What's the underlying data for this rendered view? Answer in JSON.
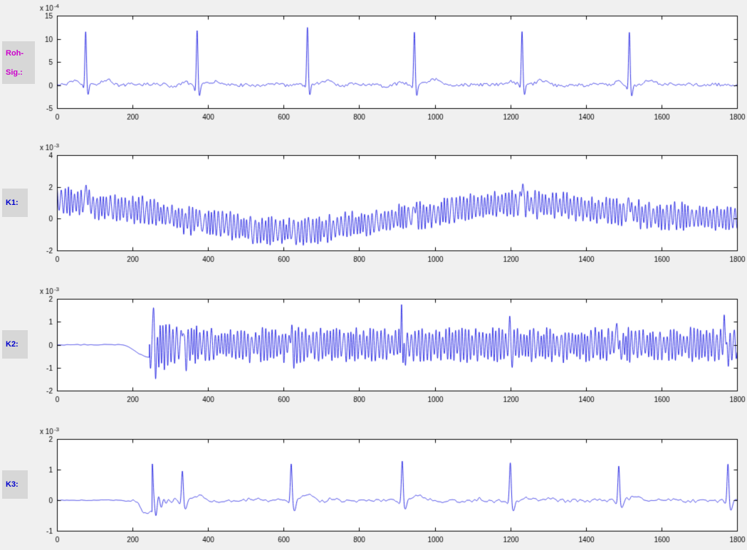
{
  "colors": {
    "figure_bg": "#f0f0f0",
    "label_bg": "#d7d7d7",
    "roh_label": "#cc00cc",
    "k_label": "#0000cc",
    "line": "#0000dd",
    "axis": "#000000"
  },
  "labels": {
    "roh": [
      "Roh-",
      "Sig.:"
    ],
    "k1": "K1:",
    "k2": "K2:",
    "k3": "K3:"
  },
  "chart_data": [
    {
      "type": "line",
      "name": "roh_sig",
      "label": "Roh-Sig.:",
      "x_range": [
        0,
        1800
      ],
      "xticks": [
        0,
        200,
        400,
        600,
        800,
        1000,
        1200,
        1400,
        1600,
        1800
      ],
      "ylim": [
        -5,
        15
      ],
      "yticks": [
        -5,
        0,
        5,
        10,
        15
      ],
      "y_exponent_base": "x 10",
      "y_exponent_power": "-4",
      "line_color": "#0000dd",
      "signal": {
        "kind": "ecg",
        "beats": [
          76,
          371,
          663,
          946,
          1231,
          1515
        ],
        "r_amps": [
          11.4,
          12.1,
          12.5,
          11.6,
          11.2,
          11.7
        ],
        "p_amp": 0.55,
        "q_amp": -0.9,
        "s_amp": -2.4,
        "t_amp": 1.0,
        "noise": 0.32,
        "wander": 0.28
      }
    },
    {
      "type": "line",
      "name": "k1",
      "label": "K1:",
      "x_range": [
        0,
        1800
      ],
      "xticks": [
        0,
        200,
        400,
        600,
        800,
        1000,
        1200,
        1400,
        1600,
        1800
      ],
      "ylim": [
        -2,
        4
      ],
      "yticks": [
        -2,
        0,
        2,
        4
      ],
      "y_exponent_base": "x 10",
      "y_exponent_power": "-3",
      "line_color": "#0000dd",
      "signal": {
        "kind": "osc_drift",
        "osc_period": 9.5,
        "osc_amp": 0.95,
        "drift": [
          [
            0,
            1.1
          ],
          [
            200,
            0.55
          ],
          [
            400,
            -0.25
          ],
          [
            550,
            -0.75
          ],
          [
            650,
            -0.85
          ],
          [
            800,
            -0.35
          ],
          [
            950,
            0.15
          ],
          [
            1100,
            0.7
          ],
          [
            1200,
            0.95
          ],
          [
            1300,
            0.85
          ],
          [
            1450,
            0.5
          ],
          [
            1600,
            0.15
          ],
          [
            1800,
            0.0
          ]
        ],
        "beats": [
          78,
          372,
          664,
          948,
          1232,
          1516
        ],
        "spike_amps": [
          1.3,
          0.5,
          0.6,
          0.9,
          1.6,
          1.0
        ]
      }
    },
    {
      "type": "line",
      "name": "k2",
      "label": "K2:",
      "x_range": [
        0,
        1800
      ],
      "xticks": [
        0,
        200,
        400,
        600,
        800,
        1000,
        1200,
        1400,
        1600,
        1800
      ],
      "ylim": [
        -2,
        2
      ],
      "yticks": [
        -2,
        -1,
        0,
        1,
        2
      ],
      "y_exponent_base": "x 10",
      "y_exponent_power": "-3",
      "line_color": "#0000dd",
      "signal": {
        "kind": "osc_burst",
        "onset": 245,
        "dip": 0.55,
        "osc_period": 9,
        "osc_amp": 0.82,
        "burst_extra": 0.55,
        "beats": [
          256,
          333,
          620,
          912,
          1198,
          1483,
          1768
        ],
        "spike_amps": [
          1.0,
          0.95,
          0.8,
          1.1,
          0.6,
          1.15,
          1.0
        ]
      }
    },
    {
      "type": "line",
      "name": "k3",
      "label": "K3:",
      "x_range": [
        0,
        1800
      ],
      "xticks": [
        0,
        200,
        400,
        600,
        800,
        1000,
        1200,
        1400,
        1600,
        1800
      ],
      "ylim": [
        -1,
        2
      ],
      "yticks": [
        -1,
        0,
        1,
        2
      ],
      "y_exponent_base": "x 10",
      "y_exponent_power": "-3",
      "line_color": "#0000dd",
      "signal": {
        "kind": "filtered_ecg",
        "onset": 252,
        "dip": 0.42,
        "trans_amp": 1.5,
        "beats": [
          332,
          620,
          914,
          1200,
          1487,
          1776
        ],
        "spike_amps": [
          1.0,
          1.28,
          1.36,
          1.33,
          1.18,
          1.26
        ]
      }
    }
  ]
}
